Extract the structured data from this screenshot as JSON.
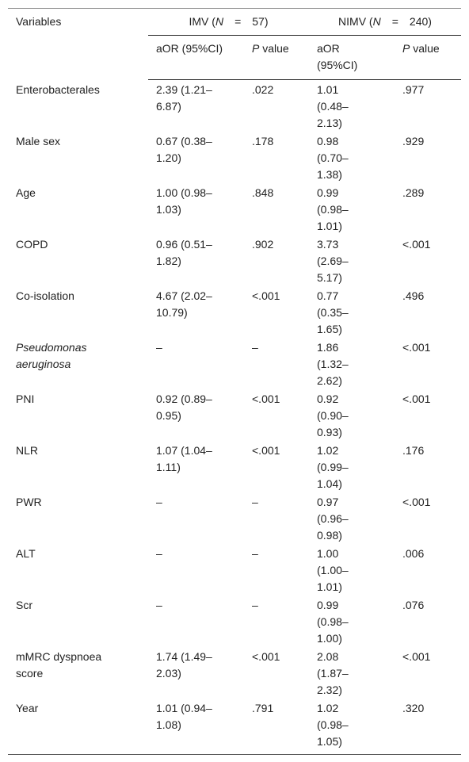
{
  "header": {
    "variables": "Variables",
    "groups": [
      {
        "label_parts": [
          "IMV (",
          "N",
          "=",
          "57)"
        ]
      },
      {
        "label_parts": [
          "NIMV (",
          "N",
          "=",
          "240)"
        ]
      }
    ],
    "subheaders": [
      {
        "parts": [
          "aOR (95%CI)"
        ]
      },
      {
        "parts": [
          "P",
          "value"
        ]
      },
      {
        "parts": [
          "aOR (95%CI)"
        ]
      },
      {
        "parts": [
          "P",
          "value"
        ]
      }
    ]
  },
  "table": {
    "rows": [
      {
        "cells": [
          "Enterobacterales",
          "2.39 (1.21–6.87)",
          ".022",
          "1.01 (0.48–2.13)",
          ".977"
        ]
      },
      {
        "cells": [
          "Male sex",
          "0.67 (0.38–1.20)",
          ".178",
          "0.98 (0.70–1.38)",
          ".929"
        ]
      },
      {
        "cells": [
          "Age",
          "1.00 (0.98–1.03)",
          ".848",
          "0.99 (0.98–1.01)",
          ".289"
        ]
      },
      {
        "cells": [
          "COPD",
          "0.96 (0.51–1.82)",
          ".902",
          "3.73 (2.69–5.17)",
          "<.001"
        ]
      },
      {
        "cells": [
          "Co-isolation",
          "4.67 (2.02–10.79)",
          "<.001",
          "0.77 (0.35–1.65)",
          ".496"
        ]
      },
      {
        "cells": [
          "Pseudomonas aeruginosa",
          "–",
          "–",
          "1.86 (1.32–2.62)",
          "<.001"
        ],
        "italic": true
      },
      {
        "cells": [
          "PNI",
          "0.92 (0.89–0.95)",
          "<.001",
          "0.92 (0.90–0.93)",
          "<.001"
        ]
      },
      {
        "cells": [
          "NLR",
          "1.07 (1.04–1.11)",
          "<.001",
          "1.02 (0.99–1.04)",
          ".176"
        ]
      },
      {
        "cells": [
          "PWR",
          "–",
          "–",
          "0.97 (0.96–0.98)",
          "<.001"
        ]
      },
      {
        "cells": [
          "ALT",
          "–",
          "–",
          "1.00 (1.00–1.01)",
          ".006"
        ]
      },
      {
        "cells": [
          "Scr",
          "–",
          "–",
          "0.99 (0.98–1.00)",
          ".076"
        ]
      },
      {
        "cells": [
          "mMRC dyspnoea score",
          "1.74 (1.49–2.03)",
          "<.001",
          "2.08 (1.87–2.32)",
          "<.001"
        ]
      },
      {
        "cells": [
          "Year",
          "1.01 (0.94–1.08)",
          ".791",
          "1.02 (0.98–1.05)",
          ".320"
        ]
      }
    ]
  }
}
